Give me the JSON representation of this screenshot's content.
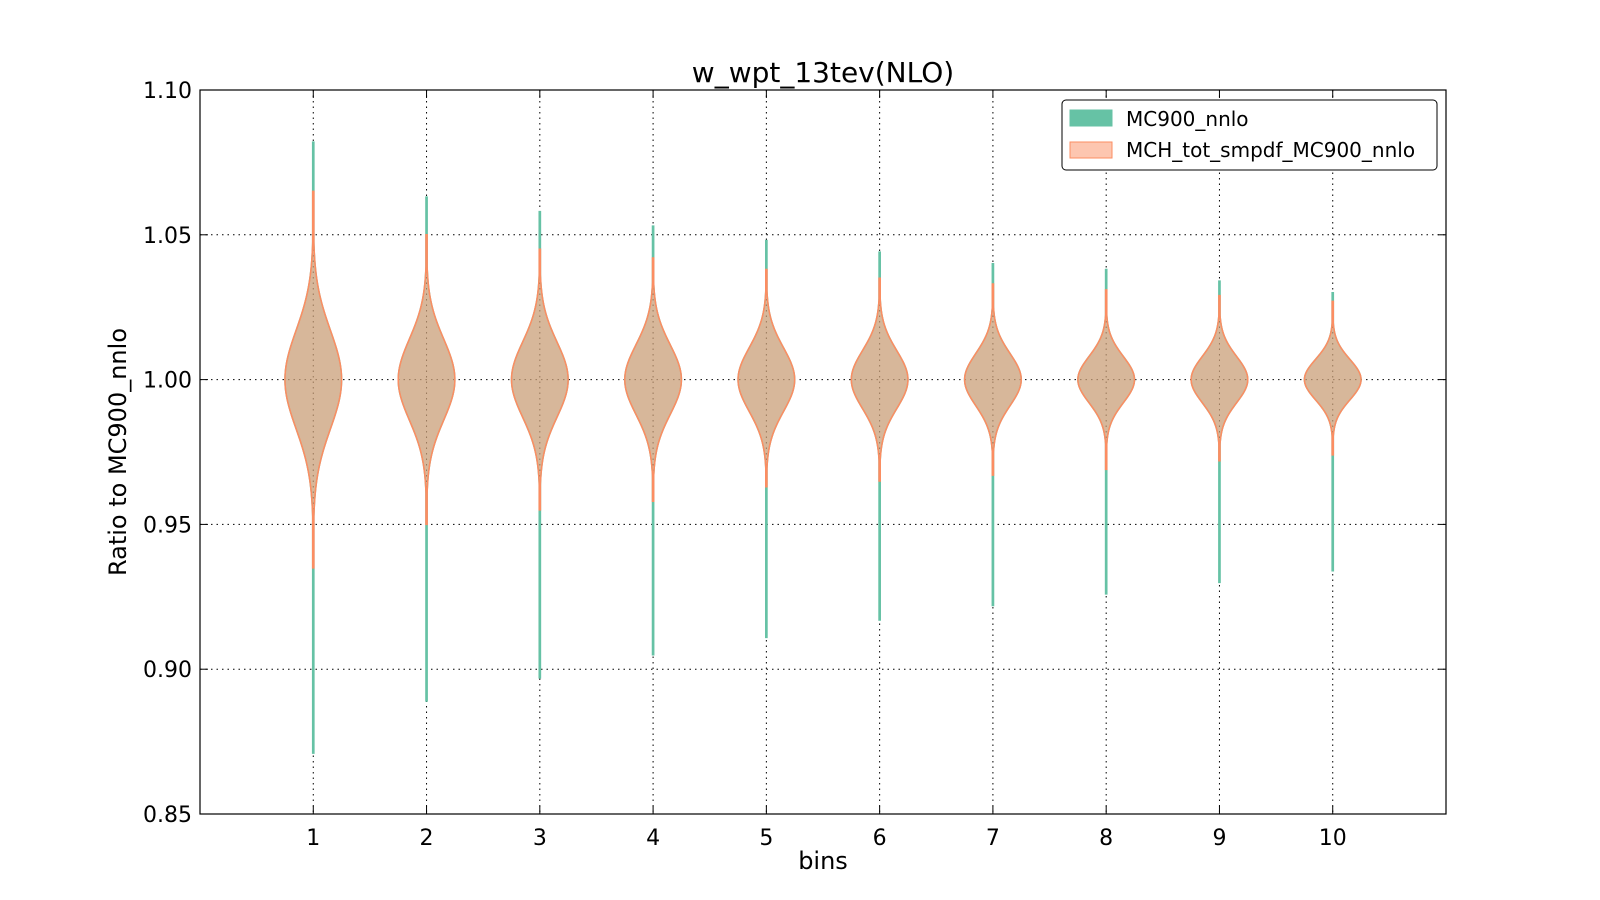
{
  "chart_data": {
    "type": "violin",
    "title": "w_wpt_13tev(NLO)",
    "xlabel": "bins",
    "ylabel": "Ratio to MC900_nnlo",
    "ylim": [
      0.85,
      1.1
    ],
    "xlim": [
      0,
      11
    ],
    "yticks": [
      "0.85",
      "0.90",
      "0.95",
      "1.00",
      "1.05",
      "1.10"
    ],
    "ytick_values": [
      0.85,
      0.9,
      0.95,
      1.0,
      1.05,
      1.1
    ],
    "categories": [
      "1",
      "2",
      "3",
      "4",
      "5",
      "6",
      "7",
      "8",
      "9",
      "10"
    ],
    "grid": true,
    "legend_position": "top-right",
    "series": [
      {
        "name": "MC900_nnlo",
        "fill": "#66c2a5",
        "edge": "#66c2a5",
        "min": [
          0.871,
          0.889,
          0.897,
          0.905,
          0.911,
          0.917,
          0.922,
          0.926,
          0.93,
          0.934
        ],
        "max": [
          1.082,
          1.063,
          1.058,
          1.053,
          1.048,
          1.044,
          1.04,
          1.038,
          1.034,
          1.03
        ],
        "center": [
          1.0,
          1.0,
          1.0,
          1.0,
          1.0,
          1.0,
          1.0,
          1.0,
          1.0,
          1.0
        ],
        "spread": [
          0.017,
          0.014,
          0.013,
          0.012,
          0.011,
          0.01,
          0.009,
          0.008,
          0.008,
          0.007
        ],
        "max_half_width": [
          0.25,
          0.25,
          0.25,
          0.25,
          0.25,
          0.25,
          0.25,
          0.25,
          0.25,
          0.25
        ]
      },
      {
        "name": "MCH_tot_smpdf_MC900_nnlo",
        "fill": "#fc8d62",
        "edge": "#fc8d62",
        "min": [
          0.935,
          0.95,
          0.955,
          0.958,
          0.963,
          0.965,
          0.967,
          0.969,
          0.972,
          0.974
        ],
        "max": [
          1.065,
          1.05,
          1.045,
          1.042,
          1.038,
          1.035,
          1.033,
          1.031,
          1.029,
          1.027
        ],
        "center": [
          1.0,
          1.0,
          1.0,
          1.0,
          1.0,
          1.0,
          1.0,
          1.0,
          1.0,
          1.0
        ],
        "spread": [
          0.017,
          0.014,
          0.013,
          0.012,
          0.011,
          0.01,
          0.009,
          0.008,
          0.008,
          0.007
        ],
        "max_half_width": [
          0.25,
          0.25,
          0.25,
          0.25,
          0.25,
          0.25,
          0.25,
          0.25,
          0.25,
          0.25
        ]
      }
    ]
  }
}
